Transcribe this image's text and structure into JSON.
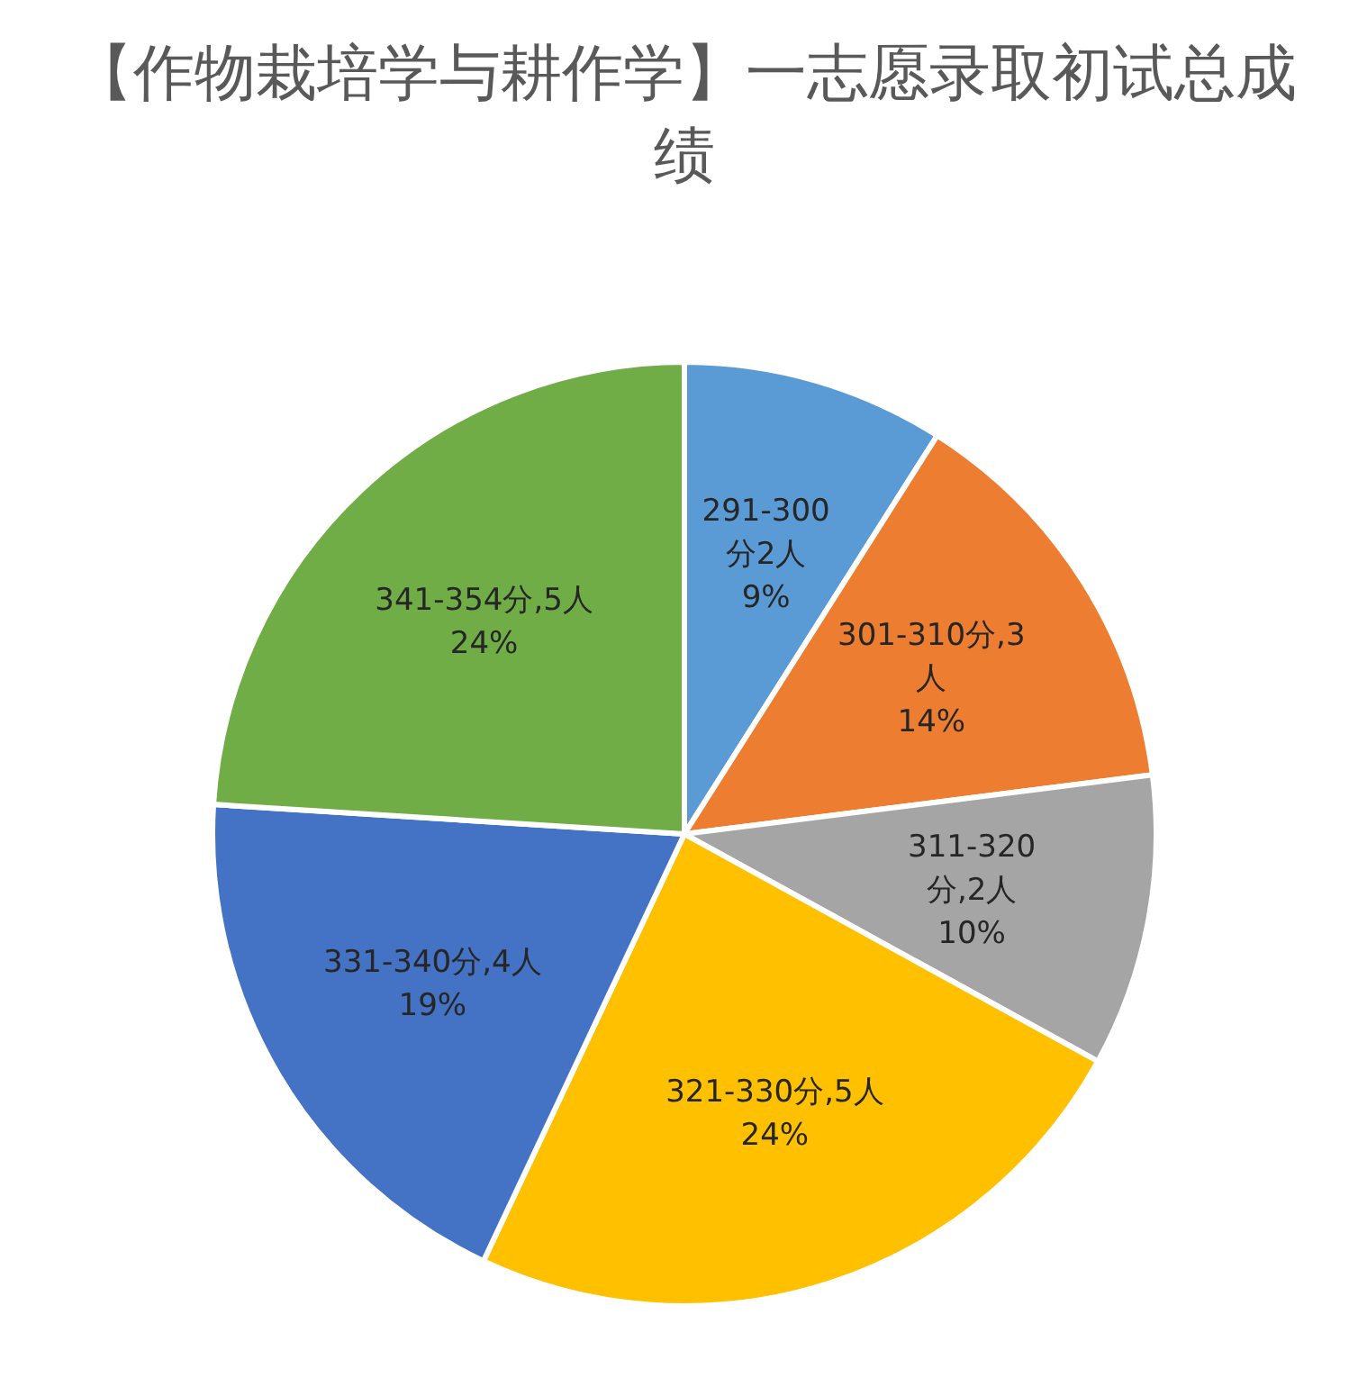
{
  "chart_data": {
    "type": "pie",
    "title": "【作物栽培学与耕作学】一志愿录取初试总成绩",
    "categories": [
      "291-300分2人",
      "301-310分,3人",
      "311-320分,2人",
      "321-330分,5人",
      "331-340分,4人",
      "341-354分,5人"
    ],
    "values": [
      9,
      14,
      10,
      24,
      19,
      24
    ],
    "colors": [
      "#5b9bd5",
      "#ed7d31",
      "#a5a5a5",
      "#ffc000",
      "#4472c4",
      "#70ad47"
    ],
    "value_labels": [
      "9%",
      "14%",
      "10%",
      "24%",
      "19%",
      "24%"
    ]
  }
}
